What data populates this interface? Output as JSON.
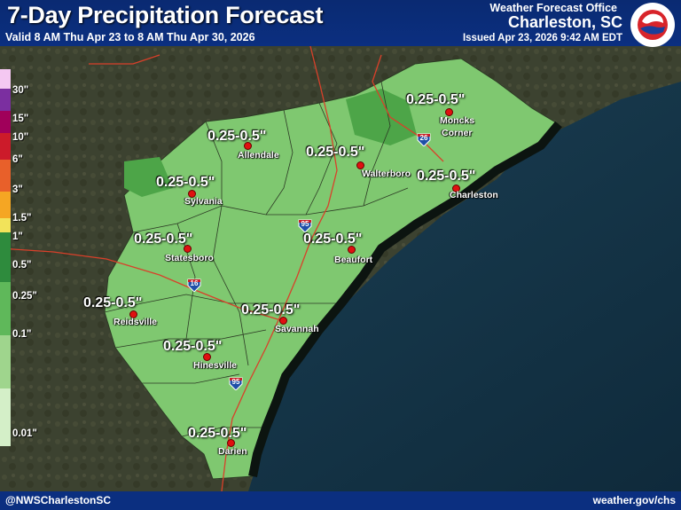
{
  "header": {
    "title": "7-Day Precipitation Forecast",
    "valid": "Valid 8 AM Thu Apr 23 to 8 AM Thu Apr 30, 2026",
    "wfo_label": "Weather Forecast Office",
    "office": "Charleston, SC",
    "issued": "Issued Apr 23, 2026 9:42 AM EDT",
    "seal_text": "NATIONAL WEATHER SERVICE"
  },
  "legend": {
    "labels": [
      "30\"",
      "15\"",
      "10\"",
      "6\"",
      "3\"",
      "1.5\"",
      "1\"",
      "0.5\"",
      "0.25\"",
      "0.1\"",
      "0.01\""
    ],
    "colors": [
      "#f4c8f2",
      "#7b2fa0",
      "#a0005a",
      "#cc1b2a",
      "#e8602a",
      "#f5a623",
      "#f2e35a",
      "#2e8b3d",
      "#5fb85a",
      "#9fd58d",
      "#d4efc8"
    ]
  },
  "amounts": [
    "0.25-0.5\"",
    "0.25-0.5\"",
    "0.25-0.5\"",
    "0.25-0.5\"",
    "0.25-0.5\"",
    "0.25-0.5\"",
    "0.25-0.5\"",
    "0.25-0.5\"",
    "0.25-0.5\"",
    "0.25-0.5\"",
    "0.25-0.5\""
  ],
  "cities": [
    "Moncks",
    "Corner",
    "Allendale",
    "Walterboro",
    "Charleston",
    "Sylvania",
    "Statesboro",
    "Beaufort",
    "Reidsville",
    "Savannah",
    "Hinesville",
    "Darien"
  ],
  "interstates": [
    "26",
    "95",
    "16",
    "95"
  ],
  "footer": {
    "handle": "@NWSCharlestonSC",
    "website": "weather.gov/chs"
  },
  "colors": {
    "header_bg": "#0b2f80",
    "forecast_fill": "#7fc870",
    "ocean": "#153448",
    "land_dark": "#3a3f2a"
  }
}
